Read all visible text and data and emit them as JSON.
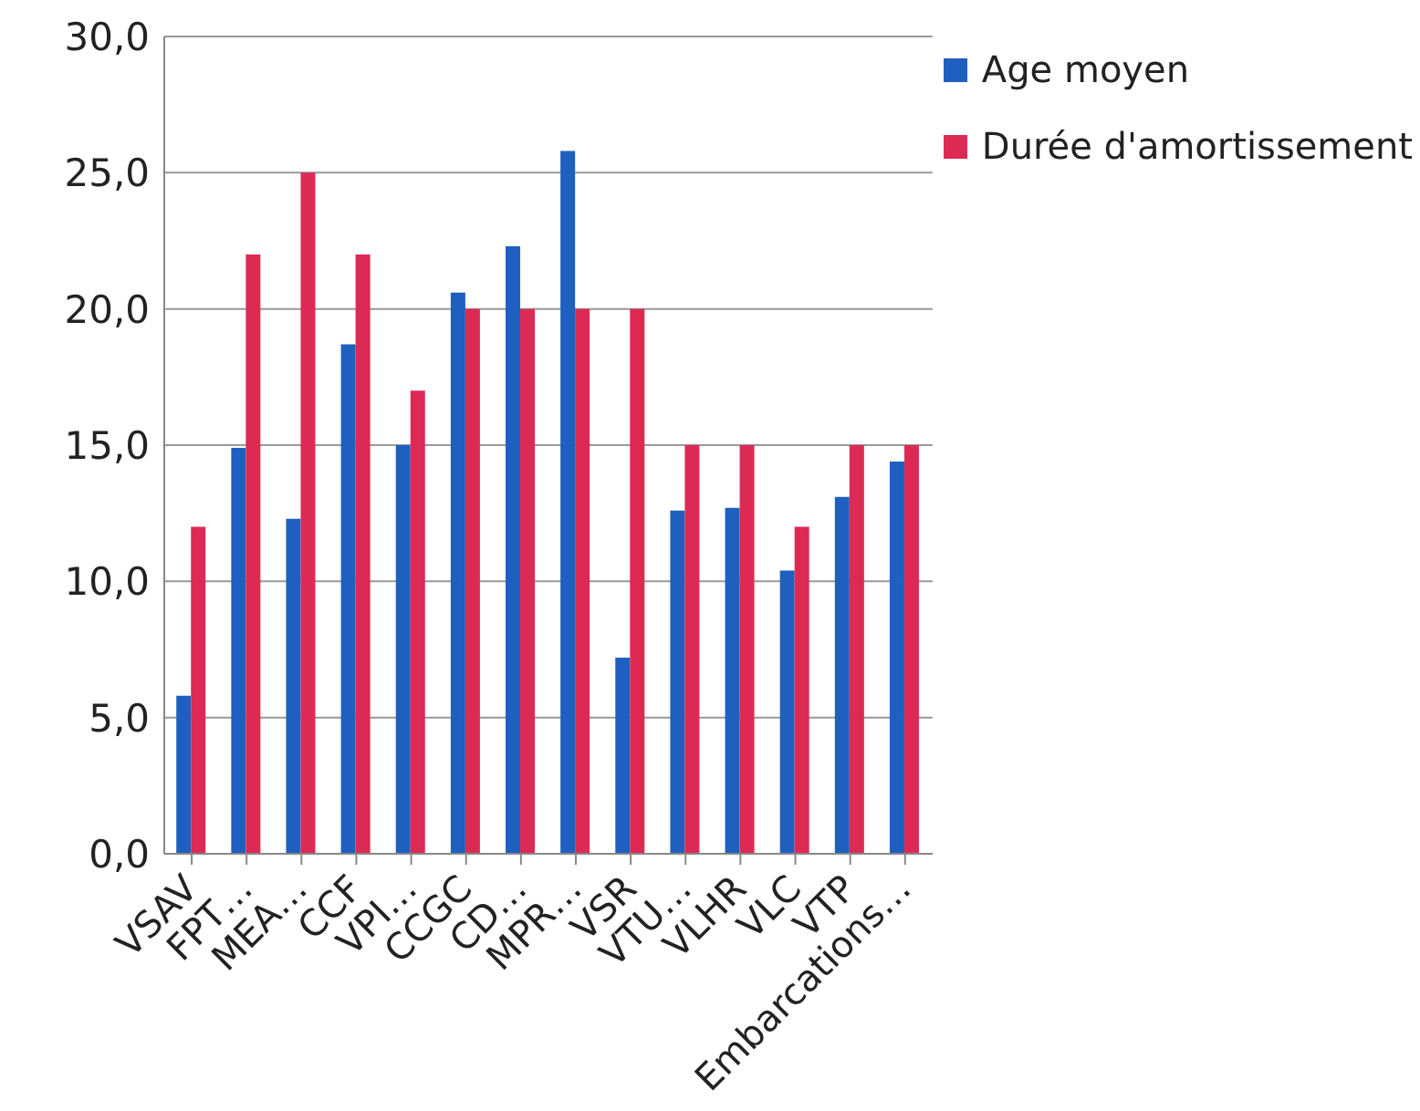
{
  "chart_data": {
    "type": "bar",
    "categories": [
      "VSAV",
      "FPT…",
      "MEA…",
      "CCF",
      "VPI…",
      "CCGC",
      "CD…",
      "MPR…",
      "VSR",
      "VTU…",
      "VLHR",
      "VLC",
      "VTP",
      "Embarcations…"
    ],
    "series": [
      {
        "name": "Age moyen",
        "color": "#1f5fbf",
        "values": [
          5.8,
          14.9,
          12.3,
          18.7,
          15.0,
          20.6,
          22.3,
          25.8,
          7.2,
          12.6,
          12.7,
          10.4,
          13.1,
          14.4
        ]
      },
      {
        "name": "Durée d'amortissement",
        "color": "#dc2a55",
        "values": [
          12,
          22,
          25,
          22,
          17,
          20,
          20,
          20,
          20,
          15,
          15,
          12,
          15,
          15
        ]
      }
    ],
    "ylim": [
      0,
      30
    ],
    "yticks": [
      {
        "value": 0,
        "label": "0,0"
      },
      {
        "value": 5,
        "label": "5,0"
      },
      {
        "value": 10,
        "label": "10,0"
      },
      {
        "value": 15,
        "label": "15,0"
      },
      {
        "value": 20,
        "label": "20,0"
      },
      {
        "value": 25,
        "label": "25,0"
      },
      {
        "value": 30,
        "label": "30,0"
      }
    ],
    "grid": "y",
    "legend": "top right"
  }
}
